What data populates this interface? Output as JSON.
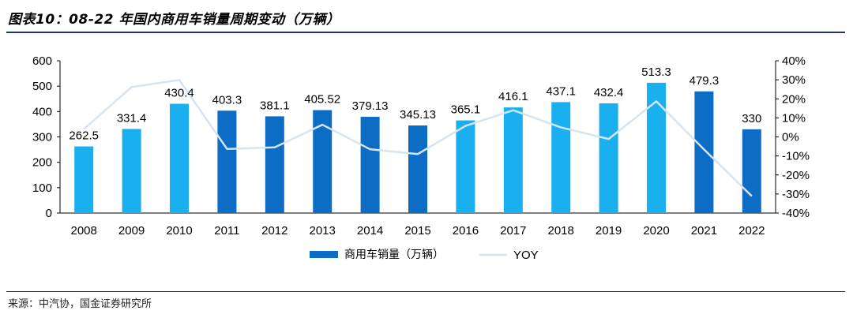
{
  "header": {
    "title": "图表10：08-22 年国内商用车销量周期变动（万辆）"
  },
  "footer": {
    "source": "来源：中汽协，国金证券研究所"
  },
  "colors": {
    "bar_light": "#1ab0f0",
    "bar_dark": "#0d6cc3",
    "line": "#d6e4f2",
    "rule": "#1f3864"
  },
  "chart_data": {
    "type": "bar",
    "categories": [
      "2008",
      "2009",
      "2010",
      "2011",
      "2012",
      "2013",
      "2014",
      "2015",
      "2016",
      "2017",
      "2018",
      "2019",
      "2020",
      "2021",
      "2022"
    ],
    "series": [
      {
        "name": "商用车销量（万辆）",
        "axis": "left",
        "values": [
          262.5,
          331.4,
          430.4,
          403.3,
          381.1,
          405.52,
          379.13,
          345.13,
          365.1,
          416.1,
          437.1,
          432.4,
          513.3,
          479.3,
          330
        ],
        "labels": [
          "262.5",
          "331.4",
          "430.4",
          "403.3",
          "381.1",
          "405.52",
          "379.13",
          "345.13",
          "365.1",
          "416.1",
          "437.1",
          "432.4",
          "513.3",
          "479.3",
          "330"
        ],
        "bar_shade": [
          "light",
          "light",
          "light",
          "dark",
          "dark",
          "dark",
          "dark",
          "dark",
          "light",
          "light",
          "light",
          "light",
          "light",
          "dark",
          "dark"
        ]
      },
      {
        "name": "YOY",
        "axis": "right",
        "type": "line",
        "values": [
          0.041,
          0.262,
          0.299,
          -0.063,
          -0.055,
          0.064,
          -0.065,
          -0.09,
          0.058,
          0.14,
          0.05,
          -0.011,
          0.187,
          -0.066,
          -0.311
        ]
      }
    ],
    "y_left": {
      "lim": [
        0,
        600
      ],
      "ticks": [
        0,
        100,
        200,
        300,
        400,
        500,
        600
      ],
      "tick_labels": [
        "0",
        "100",
        "200",
        "300",
        "400",
        "500",
        "600"
      ]
    },
    "y_right": {
      "lim": [
        -0.4,
        0.4
      ],
      "ticks": [
        -0.4,
        -0.3,
        -0.2,
        -0.1,
        0,
        0.1,
        0.2,
        0.3,
        0.4
      ],
      "tick_labels": [
        "-40%",
        "-30%",
        "-20%",
        "-10%",
        "0%",
        "10%",
        "20%",
        "30%",
        "40%"
      ]
    },
    "grid": false,
    "legend_position": "bottom-center"
  }
}
